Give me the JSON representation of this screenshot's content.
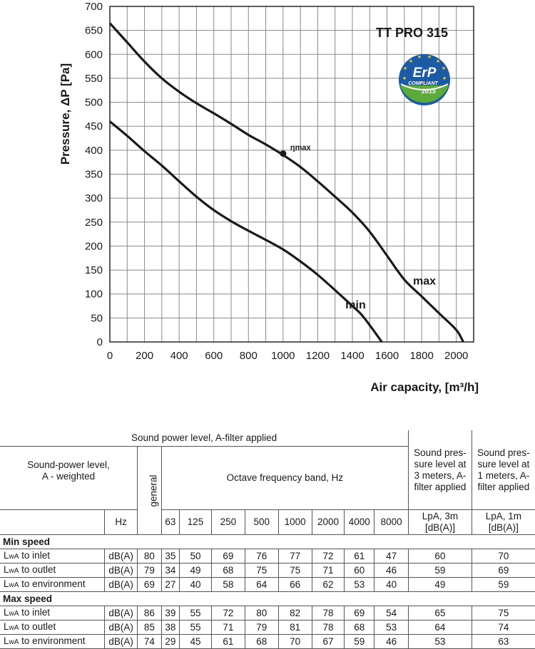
{
  "chart_data": {
    "type": "line",
    "title": "TT PRO 315",
    "xlabel": "Air capacity, [m³/h]",
    "ylabel": "Pressure, ΔP [Pa]",
    "xlim": [
      0,
      2100
    ],
    "ylim": [
      0,
      700
    ],
    "x_ticks": [
      "0",
      "200",
      "400",
      "600",
      "800",
      "1000",
      "1200",
      "1400",
      "1600",
      "1800",
      "2000"
    ],
    "y_ticks": [
      "0",
      "50",
      "100",
      "150",
      "200",
      "250",
      "300",
      "350",
      "400",
      "450",
      "500",
      "550",
      "600",
      "650",
      "700"
    ],
    "grid": true,
    "series": [
      {
        "name": "max",
        "points": [
          [
            0,
            665
          ],
          [
            100,
            625
          ],
          [
            200,
            585
          ],
          [
            300,
            550
          ],
          [
            400,
            522
          ],
          [
            500,
            498
          ],
          [
            600,
            477
          ],
          [
            700,
            455
          ],
          [
            800,
            432
          ],
          [
            900,
            412
          ],
          [
            1000,
            390
          ],
          [
            1100,
            365
          ],
          [
            1200,
            335
          ],
          [
            1300,
            303
          ],
          [
            1400,
            270
          ],
          [
            1500,
            230
          ],
          [
            1600,
            180
          ],
          [
            1700,
            130
          ],
          [
            1800,
            95
          ],
          [
            1900,
            60
          ],
          [
            2000,
            25
          ],
          [
            2040,
            0
          ]
        ]
      },
      {
        "name": "min",
        "points": [
          [
            0,
            460
          ],
          [
            100,
            430
          ],
          [
            200,
            398
          ],
          [
            300,
            368
          ],
          [
            400,
            335
          ],
          [
            500,
            303
          ],
          [
            600,
            275
          ],
          [
            700,
            252
          ],
          [
            800,
            232
          ],
          [
            900,
            213
          ],
          [
            1000,
            193
          ],
          [
            1100,
            168
          ],
          [
            1200,
            140
          ],
          [
            1300,
            108
          ],
          [
            1400,
            75
          ],
          [
            1450,
            58
          ],
          [
            1500,
            35
          ],
          [
            1570,
            0
          ]
        ]
      }
    ],
    "annotations": [
      {
        "text": "ηmax",
        "x": 1000,
        "y": 393
      }
    ],
    "badge": {
      "main": "ErP",
      "sub": "COMPLIANT",
      "year": "2015"
    }
  },
  "table": {
    "header_top": "Sound power level, A-filter applied",
    "header_sp3": "Sound pres- sure level at 3 meters, A-filter applied",
    "header_sp1": "Sound pres- sure level at 1 meters, A-filter applied",
    "row_label_header": "Sound-power level, A - weighted",
    "general_header": "general",
    "octave_header": "Octave frequency band, Hz",
    "unit_header": "Hz",
    "freqs": [
      "63",
      "125",
      "250",
      "500",
      "1000",
      "2000",
      "4000",
      "8000"
    ],
    "lpa3_header": "LpA, 3m [dB(A)]",
    "lpa1_header": "LpA, 1m [dB(A)]",
    "sections": [
      {
        "title": "Min speed",
        "rows": [
          {
            "label": "to inlet",
            "unit": "dB(A)",
            "general": "80",
            "bands": [
              "35",
              "50",
              "69",
              "76",
              "77",
              "72",
              "61",
              "47"
            ],
            "lpa3": "60",
            "lpa1": "70"
          },
          {
            "label": "to outlet",
            "unit": "dB(A)",
            "general": "79",
            "bands": [
              "34",
              "49",
              "68",
              "75",
              "75",
              "71",
              "60",
              "46"
            ],
            "lpa3": "59",
            "lpa1": "69"
          },
          {
            "label": "to environment",
            "unit": "dB(A)",
            "general": "69",
            "bands": [
              "27",
              "40",
              "58",
              "64",
              "66",
              "62",
              "53",
              "40"
            ],
            "lpa3": "49",
            "lpa1": "59"
          }
        ]
      },
      {
        "title": "Max speed",
        "rows": [
          {
            "label": "to inlet",
            "unit": "dB(A)",
            "general": "86",
            "bands": [
              "39",
              "55",
              "72",
              "80",
              "82",
              "78",
              "69",
              "54"
            ],
            "lpa3": "65",
            "lpa1": "75"
          },
          {
            "label": "to outlet",
            "unit": "dB(A)",
            "general": "85",
            "bands": [
              "38",
              "55",
              "71",
              "79",
              "81",
              "78",
              "68",
              "53"
            ],
            "lpa3": "64",
            "lpa1": "74"
          },
          {
            "label": "to environment",
            "unit": "dB(A)",
            "general": "74",
            "bands": [
              "29",
              "45",
              "61",
              "68",
              "70",
              "67",
              "59",
              "46"
            ],
            "lpa3": "53",
            "lpa1": "63"
          }
        ]
      }
    ],
    "lwa_prefix": "L",
    "lwa_sub": "wA"
  }
}
